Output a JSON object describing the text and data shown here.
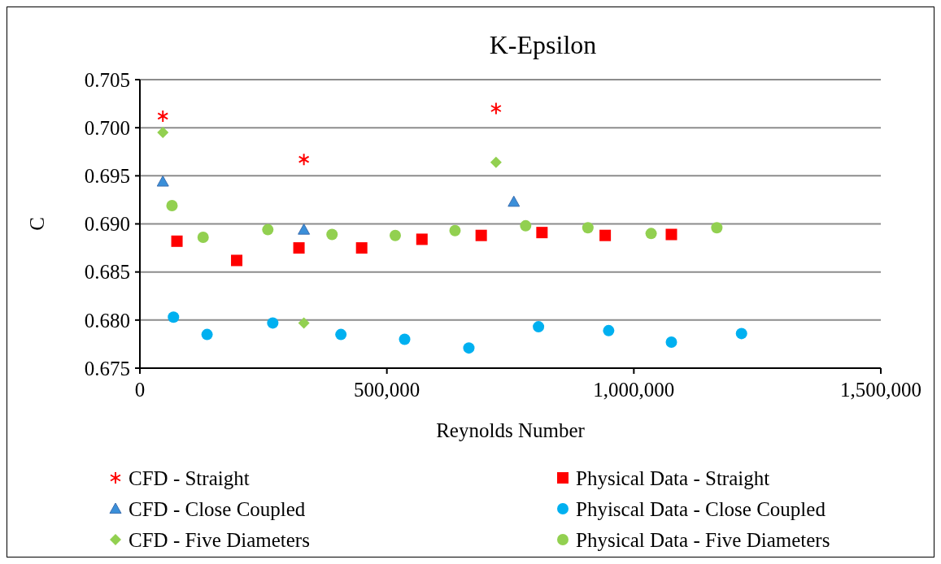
{
  "chart_data": {
    "type": "scatter",
    "title": "K-Epsilon",
    "xlabel": "Reynolds Number",
    "ylabel": "C",
    "xlim": [
      0,
      1500000
    ],
    "xticks": [
      {
        "value": 0,
        "label": "0"
      },
      {
        "value": 500000,
        "label": "500,000"
      },
      {
        "value": 1000000,
        "label": "1,000,000"
      },
      {
        "value": 1500000,
        "label": "1,500,000"
      }
    ],
    "ylim": [
      0.675,
      0.705
    ],
    "yticks": [
      {
        "value": 0.675,
        "label": "0.675"
      },
      {
        "value": 0.68,
        "label": "0.680"
      },
      {
        "value": 0.685,
        "label": "0.685"
      },
      {
        "value": 0.69,
        "label": "0.690"
      },
      {
        "value": 0.695,
        "label": "0.695"
      },
      {
        "value": 0.7,
        "label": "0.700"
      },
      {
        "value": 0.705,
        "label": "0.705"
      }
    ],
    "grid": "y",
    "legend": "bottom",
    "series": [
      {
        "name": "CFD - Straight",
        "color": "#ff0000",
        "marker": "cross",
        "x": [
          46500,
          332000,
          721000
        ],
        "values": [
          0.7012,
          0.6967,
          0.702
        ]
      },
      {
        "name": "Physical Data - Straight",
        "color": "#ff0000",
        "marker": "square",
        "x": [
          75000,
          196000,
          322000,
          449000,
          571000,
          691000,
          814000,
          942000,
          1076000
        ],
        "values": [
          0.6882,
          0.6862,
          0.6875,
          0.6875,
          0.6884,
          0.6888,
          0.6891,
          0.6888,
          0.6889
        ]
      },
      {
        "name": "CFD - Close Coupled",
        "color": "#3a8fd9",
        "marker": "triangle",
        "x": [
          46500,
          332000,
          757000
        ],
        "values": [
          0.6944,
          0.6894,
          0.6923
        ]
      },
      {
        "name": "Phyiscal Data - Close Coupled",
        "color": "#00b0f0",
        "marker": "circle",
        "x": [
          68000,
          136000,
          269000,
          407000,
          536000,
          666000,
          807000,
          949000,
          1076000,
          1218000
        ],
        "values": [
          0.6803,
          0.6785,
          0.6797,
          0.6785,
          0.678,
          0.6771,
          0.6793,
          0.6789,
          0.6777,
          0.6786
        ]
      },
      {
        "name": "CFD - Five Diameters",
        "color": "#92d050",
        "marker": "diamond",
        "x": [
          46500,
          332000,
          721000
        ],
        "values": [
          0.6995,
          0.6797,
          0.6964
        ]
      },
      {
        "name": "Physical Data - Five Diameters",
        "color": "#92d050",
        "marker": "circle",
        "x": [
          65000,
          128000,
          259000,
          389000,
          517000,
          638000,
          781000,
          907000,
          1035000,
          1168000
        ],
        "values": [
          0.6919,
          0.6886,
          0.6894,
          0.6889,
          0.6888,
          0.6893,
          0.6898,
          0.6896,
          0.689,
          0.6896
        ]
      }
    ]
  }
}
